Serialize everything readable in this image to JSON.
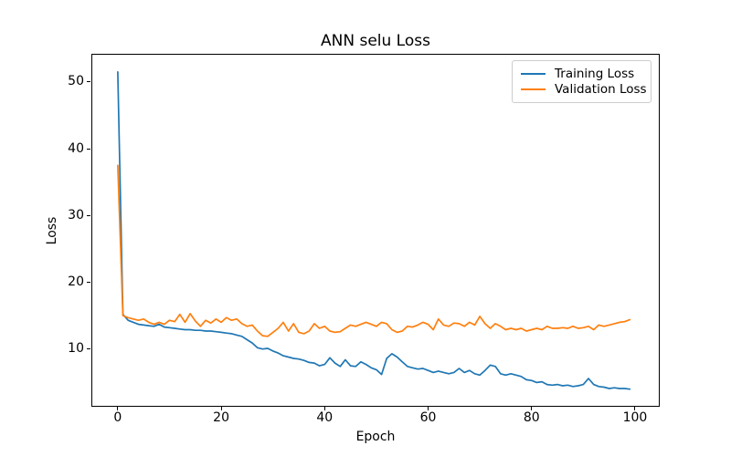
{
  "figure": {
    "title": "ANN selu Loss",
    "xlabel": "Epoch",
    "ylabel": "Loss"
  },
  "legend": {
    "items": [
      {
        "label": "Training Loss",
        "color": "#1f77b4"
      },
      {
        "label": "Validation Loss",
        "color": "#ff7f0e"
      }
    ]
  },
  "chart_data": {
    "type": "line",
    "title": "ANN selu Loss",
    "xlabel": "Epoch",
    "ylabel": "Loss",
    "grid": false,
    "legend_position": "upper right",
    "xlim": [
      -5.1,
      104.6
    ],
    "ylim": [
      1.5,
      54.2
    ],
    "xticks": [
      0,
      20,
      40,
      60,
      80,
      100
    ],
    "yticks": [
      10,
      20,
      30,
      40,
      50
    ],
    "x": [
      0,
      1,
      2,
      3,
      4,
      5,
      6,
      7,
      8,
      9,
      10,
      11,
      12,
      13,
      14,
      15,
      16,
      17,
      18,
      19,
      20,
      21,
      22,
      23,
      24,
      25,
      26,
      27,
      28,
      29,
      30,
      31,
      32,
      33,
      34,
      35,
      36,
      37,
      38,
      39,
      40,
      41,
      42,
      43,
      44,
      45,
      46,
      47,
      48,
      49,
      50,
      51,
      52,
      53,
      54,
      55,
      56,
      57,
      58,
      59,
      60,
      61,
      62,
      63,
      64,
      65,
      66,
      67,
      68,
      69,
      70,
      71,
      72,
      73,
      74,
      75,
      76,
      77,
      78,
      79,
      80,
      81,
      82,
      83,
      84,
      85,
      86,
      87,
      88,
      89,
      90,
      91,
      92,
      93,
      94,
      95,
      96,
      97,
      98,
      99
    ],
    "series": [
      {
        "name": "Training Loss",
        "color": "#1f77b4",
        "values": [
          51.5,
          15.2,
          14.3,
          14.0,
          13.7,
          13.6,
          13.5,
          13.4,
          13.7,
          13.3,
          13.2,
          13.1,
          13.0,
          12.9,
          12.9,
          12.8,
          12.8,
          12.7,
          12.7,
          12.6,
          12.5,
          12.4,
          12.3,
          12.1,
          11.9,
          11.4,
          10.9,
          10.2,
          10.0,
          10.1,
          9.7,
          9.4,
          9.0,
          8.8,
          8.6,
          8.5,
          8.3,
          8.0,
          7.9,
          7.5,
          7.7,
          8.7,
          7.9,
          7.4,
          8.4,
          7.5,
          7.4,
          8.1,
          7.7,
          7.2,
          6.9,
          6.2,
          8.6,
          9.3,
          8.8,
          8.1,
          7.4,
          7.2,
          7.0,
          7.1,
          6.8,
          6.5,
          6.7,
          6.5,
          6.3,
          6.5,
          7.1,
          6.5,
          6.8,
          6.3,
          6.1,
          6.8,
          7.6,
          7.4,
          6.3,
          6.1,
          6.3,
          6.1,
          5.9,
          5.4,
          5.3,
          5.0,
          5.1,
          4.7,
          4.6,
          4.7,
          4.5,
          4.6,
          4.4,
          4.5,
          4.7,
          5.6,
          4.7,
          4.4,
          4.3,
          4.1,
          4.2,
          4.1,
          4.1,
          4.0
        ]
      },
      {
        "name": "Validation Loss",
        "color": "#ff7f0e",
        "values": [
          37.5,
          15.0,
          14.7,
          14.5,
          14.3,
          14.5,
          14.0,
          13.7,
          14.0,
          13.7,
          14.3,
          14.1,
          15.2,
          14.0,
          15.3,
          14.2,
          13.4,
          14.3,
          13.9,
          14.5,
          14.0,
          14.7,
          14.3,
          14.5,
          13.8,
          13.4,
          13.6,
          12.7,
          12.0,
          11.9,
          12.5,
          13.1,
          14.0,
          12.7,
          13.8,
          12.5,
          12.3,
          12.7,
          13.8,
          13.1,
          13.4,
          12.7,
          12.5,
          12.6,
          13.1,
          13.6,
          13.4,
          13.7,
          14.0,
          13.7,
          13.4,
          14.0,
          13.8,
          12.9,
          12.5,
          12.7,
          13.4,
          13.3,
          13.6,
          14.0,
          13.7,
          12.9,
          14.5,
          13.6,
          13.4,
          13.9,
          13.8,
          13.4,
          14.0,
          13.6,
          14.9,
          13.8,
          13.1,
          13.8,
          13.4,
          12.9,
          13.1,
          12.9,
          13.1,
          12.7,
          12.9,
          13.1,
          12.9,
          13.4,
          13.1,
          13.1,
          13.2,
          13.1,
          13.4,
          13.1,
          13.2,
          13.4,
          12.9,
          13.6,
          13.4,
          13.6,
          13.8,
          14.0,
          14.1,
          14.4
        ]
      }
    ]
  }
}
